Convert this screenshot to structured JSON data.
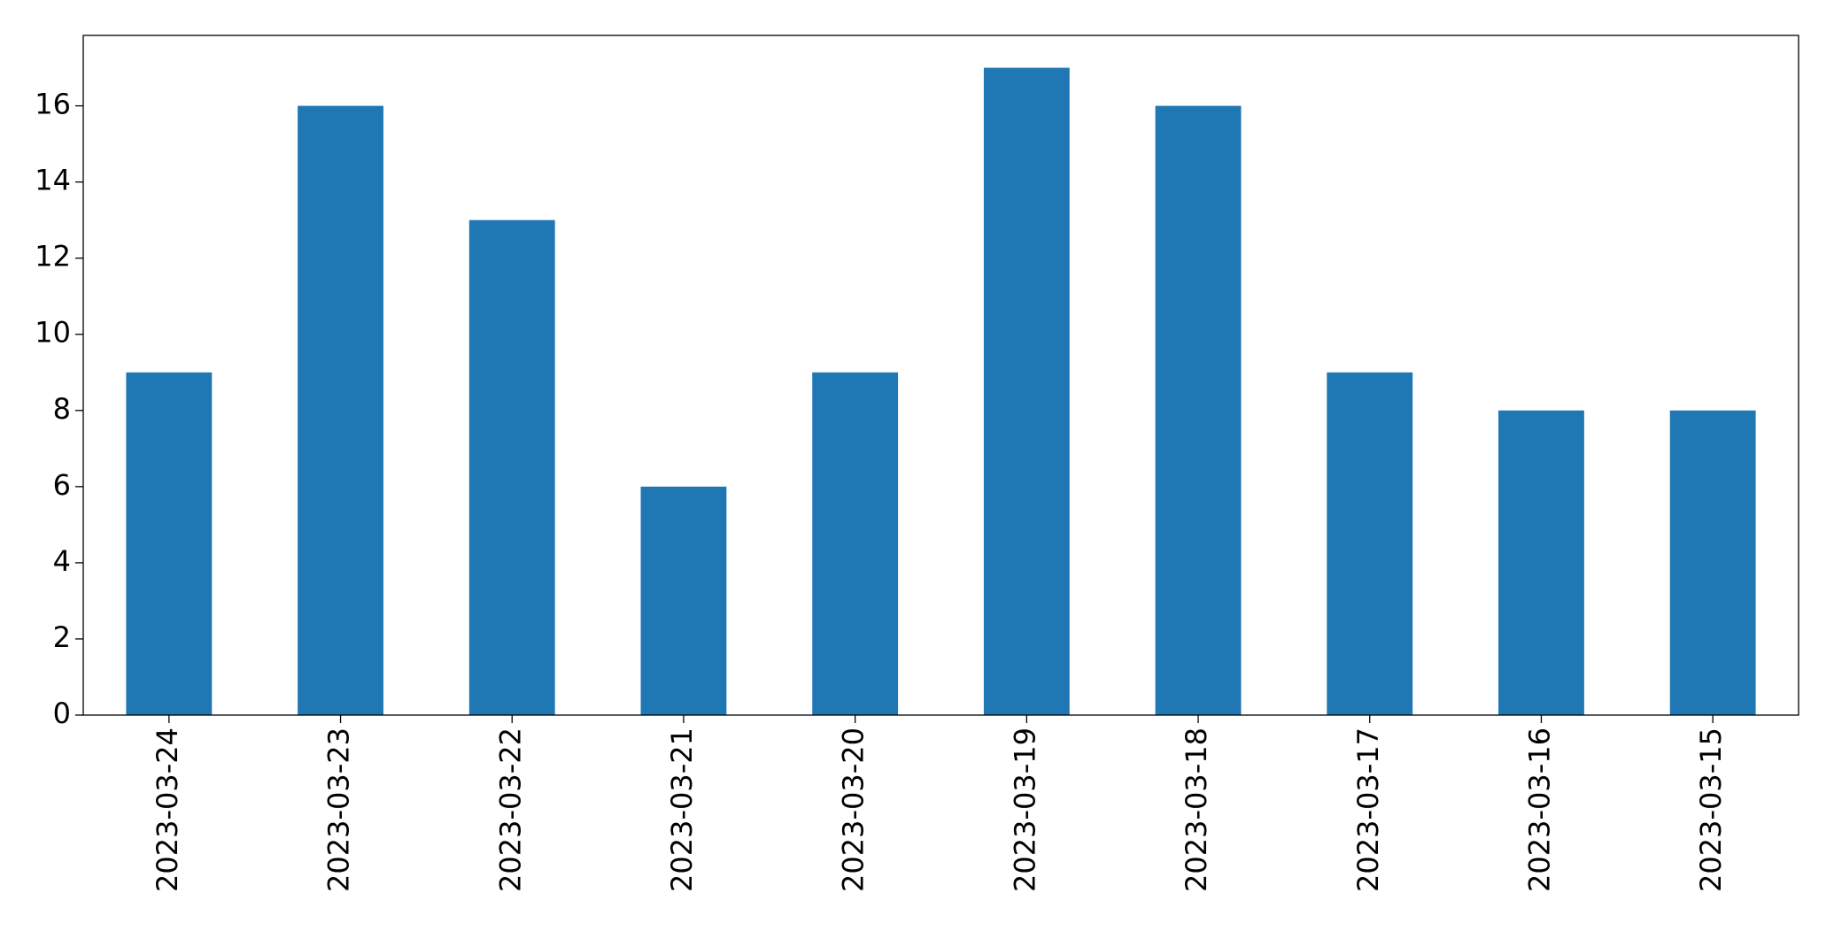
{
  "chart_data": {
    "type": "bar",
    "categories": [
      "2023-03-24",
      "2023-03-23",
      "2023-03-22",
      "2023-03-21",
      "2023-03-20",
      "2023-03-19",
      "2023-03-18",
      "2023-03-17",
      "2023-03-16",
      "2023-03-15"
    ],
    "values": [
      9,
      16,
      13,
      6,
      9,
      17,
      16,
      9,
      8,
      8
    ],
    "color": "#1f77b4",
    "ylim": [
      0,
      17.85
    ],
    "yticks": [
      0,
      2,
      4,
      6,
      8,
      10,
      12,
      14,
      16
    ],
    "grid": false
  }
}
